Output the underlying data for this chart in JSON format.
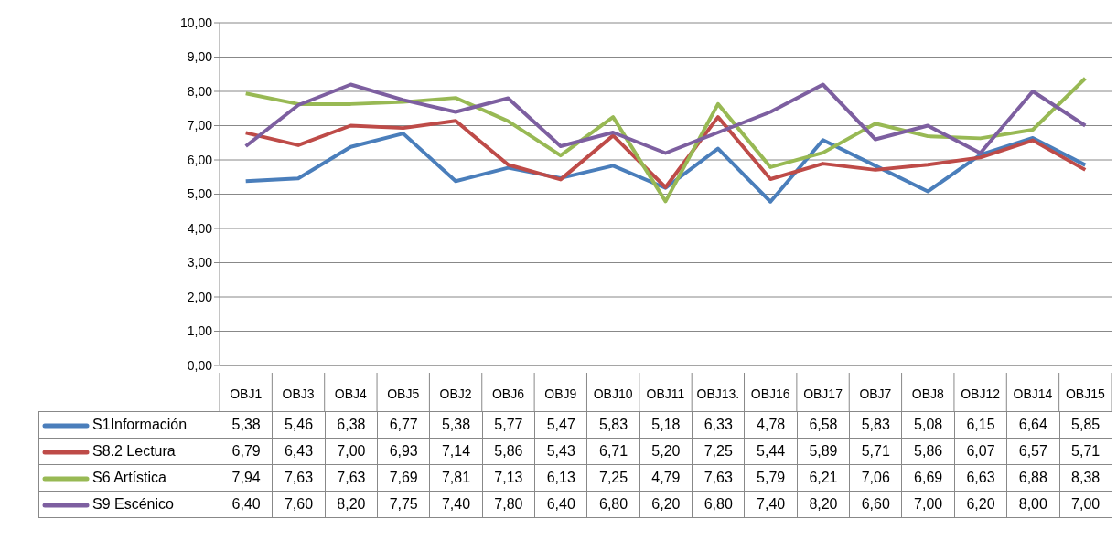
{
  "chart_data": {
    "type": "line",
    "categories": [
      "OBJ1",
      "OBJ3",
      "OBJ4",
      "OBJ5",
      "OBJ2",
      "OBJ6",
      "OBJ9",
      "OBJ10",
      "OBJ11",
      "OBJ13.",
      "OBJ16",
      "OBJ17",
      "OBJ7",
      "OBJ8",
      "OBJ12",
      "OBJ14",
      "OBJ15"
    ],
    "series": [
      {
        "name": "S1Información",
        "color": "#4a7ebb",
        "values": [
          5.38,
          5.46,
          6.38,
          6.77,
          5.38,
          5.77,
          5.47,
          5.83,
          5.18,
          6.33,
          4.78,
          6.58,
          5.83,
          5.08,
          6.15,
          6.64,
          5.85
        ],
        "value_labels": [
          "5,38",
          "5,46",
          "6,38",
          "6,77",
          "5,38",
          "5,77",
          "5,47",
          "5,83",
          "5,18",
          "6,33",
          "4,78",
          "6,58",
          "5,83",
          "5,08",
          "6,15",
          "6,64",
          "5,85"
        ]
      },
      {
        "name": "S8.2 Lectura",
        "color": "#be4b48",
        "values": [
          6.79,
          6.43,
          7.0,
          6.93,
          7.14,
          5.86,
          5.43,
          6.71,
          5.2,
          7.25,
          5.44,
          5.89,
          5.71,
          5.86,
          6.07,
          6.57,
          5.71
        ],
        "value_labels": [
          "6,79",
          "6,43",
          "7,00",
          "6,93",
          "7,14",
          "5,86",
          "5,43",
          "6,71",
          "5,20",
          "7,25",
          "5,44",
          "5,89",
          "5,71",
          "5,86",
          "6,07",
          "6,57",
          "5,71"
        ]
      },
      {
        "name": "S6 Artística",
        "color": "#98b954",
        "values": [
          7.94,
          7.63,
          7.63,
          7.69,
          7.81,
          7.13,
          6.13,
          7.25,
          4.79,
          7.63,
          5.79,
          6.21,
          7.06,
          6.69,
          6.63,
          6.88,
          8.38
        ],
        "value_labels": [
          "7,94",
          "7,63",
          "7,63",
          "7,69",
          "7,81",
          "7,13",
          "6,13",
          "7,25",
          "4,79",
          "7,63",
          "5,79",
          "6,21",
          "7,06",
          "6,69",
          "6,63",
          "6,88",
          "8,38"
        ]
      },
      {
        "name": "S9 Escénico",
        "color": "#7d5fa0",
        "values": [
          6.4,
          7.6,
          8.2,
          7.75,
          7.4,
          7.8,
          6.4,
          6.8,
          6.2,
          6.8,
          7.4,
          8.2,
          6.6,
          7.0,
          6.2,
          8.0,
          7.0
        ],
        "value_labels": [
          "6,40",
          "7,60",
          "8,20",
          "7,75",
          "7,40",
          "7,80",
          "6,40",
          "6,80",
          "6,20",
          "6,80",
          "7,40",
          "8,20",
          "6,60",
          "7,00",
          "6,20",
          "8,00",
          "7,00"
        ]
      }
    ],
    "ylim": [
      0,
      10
    ],
    "yticks": [
      {
        "value": 0,
        "label": "0,00"
      },
      {
        "value": 1,
        "label": "1,00"
      },
      {
        "value": 2,
        "label": "2,00"
      },
      {
        "value": 3,
        "label": "3,00"
      },
      {
        "value": 4,
        "label": "4,00"
      },
      {
        "value": 5,
        "label": "5,00"
      },
      {
        "value": 6,
        "label": "6,00"
      },
      {
        "value": 7,
        "label": "7,00"
      },
      {
        "value": 8,
        "label": "8,00"
      },
      {
        "value": 9,
        "label": "9,00"
      },
      {
        "value": 10,
        "label": "10,00"
      }
    ],
    "grid": "y",
    "legend": "bottom left",
    "marker": "none",
    "line_style": "solid"
  }
}
